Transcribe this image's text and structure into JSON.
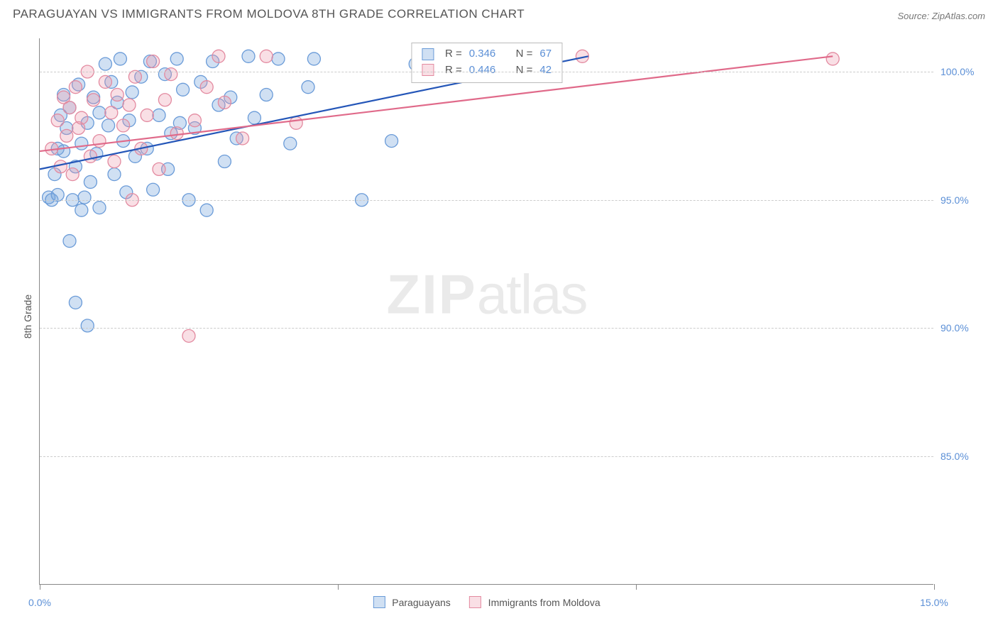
{
  "title": "PARAGUAYAN VS IMMIGRANTS FROM MOLDOVA 8TH GRADE CORRELATION CHART",
  "source": "Source: ZipAtlas.com",
  "ylabel": "8th Grade",
  "watermark_bold": "ZIP",
  "watermark_rest": "atlas",
  "chart": {
    "type": "scatter",
    "background_color": "#ffffff",
    "grid_color": "#cccccc",
    "axis_color": "#888888",
    "text_color": "#555555",
    "tick_label_color": "#5b8fd6",
    "xlim": [
      0,
      15
    ],
    "ylim": [
      80,
      101.3
    ],
    "yticks": [
      85,
      90,
      95,
      100
    ],
    "ytick_labels": [
      "85.0%",
      "90.0%",
      "95.0%",
      "100.0%"
    ],
    "xtick_positions": [
      0,
      5,
      10,
      15
    ],
    "xtick_labels_shown": {
      "0": "0.0%",
      "15": "15.0%"
    },
    "marker_radius": 9,
    "marker_stroke_width": 1.3,
    "trend_line_width": 2.2,
    "series": [
      {
        "name": "Paraguayans",
        "color_fill": "rgba(120,165,220,0.35)",
        "color_stroke": "#6a9bd8",
        "trend_color": "#2456b8",
        "R": 0.346,
        "N": 67,
        "trend": {
          "x1": 0,
          "y1": 96.2,
          "x2": 9.2,
          "y2": 100.6
        },
        "points": [
          [
            0.15,
            95.1
          ],
          [
            0.2,
            95.0
          ],
          [
            0.25,
            96.0
          ],
          [
            0.3,
            97.0
          ],
          [
            0.3,
            95.2
          ],
          [
            0.35,
            98.3
          ],
          [
            0.4,
            96.9
          ],
          [
            0.4,
            99.1
          ],
          [
            0.45,
            97.8
          ],
          [
            0.5,
            93.4
          ],
          [
            0.5,
            98.6
          ],
          [
            0.55,
            95.0
          ],
          [
            0.6,
            96.3
          ],
          [
            0.6,
            91.0
          ],
          [
            0.65,
            99.5
          ],
          [
            0.7,
            94.6
          ],
          [
            0.7,
            97.2
          ],
          [
            0.75,
            95.1
          ],
          [
            0.8,
            98.0
          ],
          [
            0.8,
            90.1
          ],
          [
            0.85,
            95.7
          ],
          [
            0.9,
            99.0
          ],
          [
            0.95,
            96.8
          ],
          [
            1.0,
            98.4
          ],
          [
            1.0,
            94.7
          ],
          [
            1.1,
            100.3
          ],
          [
            1.15,
            97.9
          ],
          [
            1.2,
            99.6
          ],
          [
            1.25,
            96.0
          ],
          [
            1.3,
            98.8
          ],
          [
            1.35,
            100.5
          ],
          [
            1.4,
            97.3
          ],
          [
            1.45,
            95.3
          ],
          [
            1.5,
            98.1
          ],
          [
            1.55,
            99.2
          ],
          [
            1.6,
            96.7
          ],
          [
            1.7,
            99.8
          ],
          [
            1.8,
            97.0
          ],
          [
            1.85,
            100.4
          ],
          [
            1.9,
            95.4
          ],
          [
            2.0,
            98.3
          ],
          [
            2.1,
            99.9
          ],
          [
            2.15,
            96.2
          ],
          [
            2.2,
            97.6
          ],
          [
            2.3,
            100.5
          ],
          [
            2.35,
            98.0
          ],
          [
            2.4,
            99.3
          ],
          [
            2.5,
            95.0
          ],
          [
            2.6,
            97.8
          ],
          [
            2.7,
            99.6
          ],
          [
            2.8,
            94.6
          ],
          [
            2.9,
            100.4
          ],
          [
            3.0,
            98.7
          ],
          [
            3.1,
            96.5
          ],
          [
            3.2,
            99.0
          ],
          [
            3.3,
            97.4
          ],
          [
            3.5,
            100.6
          ],
          [
            3.6,
            98.2
          ],
          [
            3.8,
            99.1
          ],
          [
            4.0,
            100.5
          ],
          [
            4.2,
            97.2
          ],
          [
            4.5,
            99.4
          ],
          [
            4.6,
            100.5
          ],
          [
            5.4,
            95.0
          ],
          [
            5.9,
            97.3
          ],
          [
            6.3,
            100.3
          ],
          [
            7.3,
            100.5
          ]
        ]
      },
      {
        "name": "Immigrants from Moldova",
        "color_fill": "rgba(235,150,170,0.30)",
        "color_stroke": "#e38aa0",
        "trend_color": "#e06a8a",
        "R": 0.446,
        "N": 42,
        "trend": {
          "x1": 0,
          "y1": 96.9,
          "x2": 13.3,
          "y2": 100.6
        },
        "points": [
          [
            0.2,
            97.0
          ],
          [
            0.3,
            98.1
          ],
          [
            0.35,
            96.3
          ],
          [
            0.4,
            99.0
          ],
          [
            0.45,
            97.5
          ],
          [
            0.5,
            98.6
          ],
          [
            0.55,
            96.0
          ],
          [
            0.6,
            99.4
          ],
          [
            0.65,
            97.8
          ],
          [
            0.7,
            98.2
          ],
          [
            0.8,
            100.0
          ],
          [
            0.85,
            96.7
          ],
          [
            0.9,
            98.9
          ],
          [
            1.0,
            97.3
          ],
          [
            1.1,
            99.6
          ],
          [
            1.2,
            98.4
          ],
          [
            1.25,
            96.5
          ],
          [
            1.3,
            99.1
          ],
          [
            1.4,
            97.9
          ],
          [
            1.5,
            98.7
          ],
          [
            1.55,
            95.0
          ],
          [
            1.6,
            99.8
          ],
          [
            1.7,
            97.0
          ],
          [
            1.8,
            98.3
          ],
          [
            1.9,
            100.4
          ],
          [
            2.0,
            96.2
          ],
          [
            2.1,
            98.9
          ],
          [
            2.2,
            99.9
          ],
          [
            2.3,
            97.6
          ],
          [
            2.5,
            89.7
          ],
          [
            2.6,
            98.1
          ],
          [
            2.8,
            99.4
          ],
          [
            3.0,
            100.6
          ],
          [
            3.1,
            98.8
          ],
          [
            3.4,
            97.4
          ],
          [
            3.8,
            100.6
          ],
          [
            4.3,
            98.0
          ],
          [
            6.6,
            100.5
          ],
          [
            7.8,
            100.6
          ],
          [
            8.6,
            100.4
          ],
          [
            9.1,
            100.6
          ],
          [
            13.3,
            100.5
          ]
        ]
      }
    ]
  },
  "legend": {
    "series1_label": "Paraguayans",
    "series2_label": "Immigrants from Moldova"
  },
  "stats_box": {
    "r_prefix": "R =",
    "n_prefix": "N =",
    "row1_r": "0.346",
    "row1_n": "67",
    "row2_r": "0.446",
    "row2_n": "42"
  }
}
